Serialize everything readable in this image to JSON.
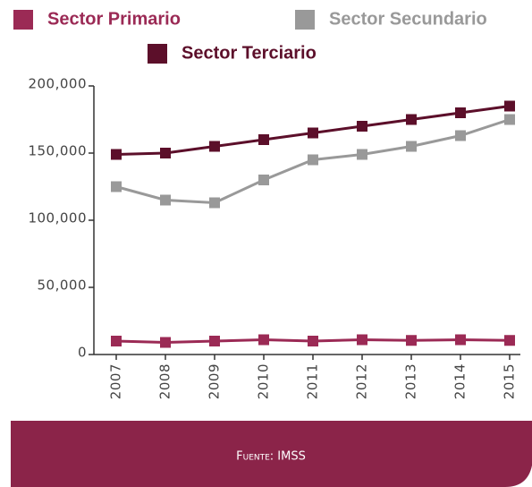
{
  "chart_data": {
    "type": "line",
    "categories": [
      "2007",
      "2008",
      "2009",
      "2010",
      "2011",
      "2012",
      "2013",
      "2014",
      "2015"
    ],
    "series": [
      {
        "name": "Sector Primario",
        "color": "#9b2a55",
        "values": [
          10000,
          9000,
          10000,
          11000,
          10000,
          11000,
          10500,
          11000,
          10500
        ]
      },
      {
        "name": "Sector Secundario",
        "color": "#999999",
        "values": [
          125000,
          115000,
          113000,
          130000,
          145000,
          149000,
          155000,
          163000,
          175000
        ]
      },
      {
        "name": "Sector Terciario",
        "color": "#5c0f2a",
        "values": [
          149000,
          150000,
          155000,
          160000,
          165000,
          170000,
          175000,
          180000,
          185000
        ]
      }
    ],
    "ylim": [
      0,
      200000
    ],
    "yticks": [
      0,
      {
        "value": 50000,
        "label": "50,000"
      },
      {
        "value": 100000,
        "label": "100,000"
      },
      {
        "value": 150000,
        "label": "150,000"
      },
      {
        "value": 200000,
        "label": "200,000"
      }
    ],
    "source": "Fuente: IMSS"
  }
}
